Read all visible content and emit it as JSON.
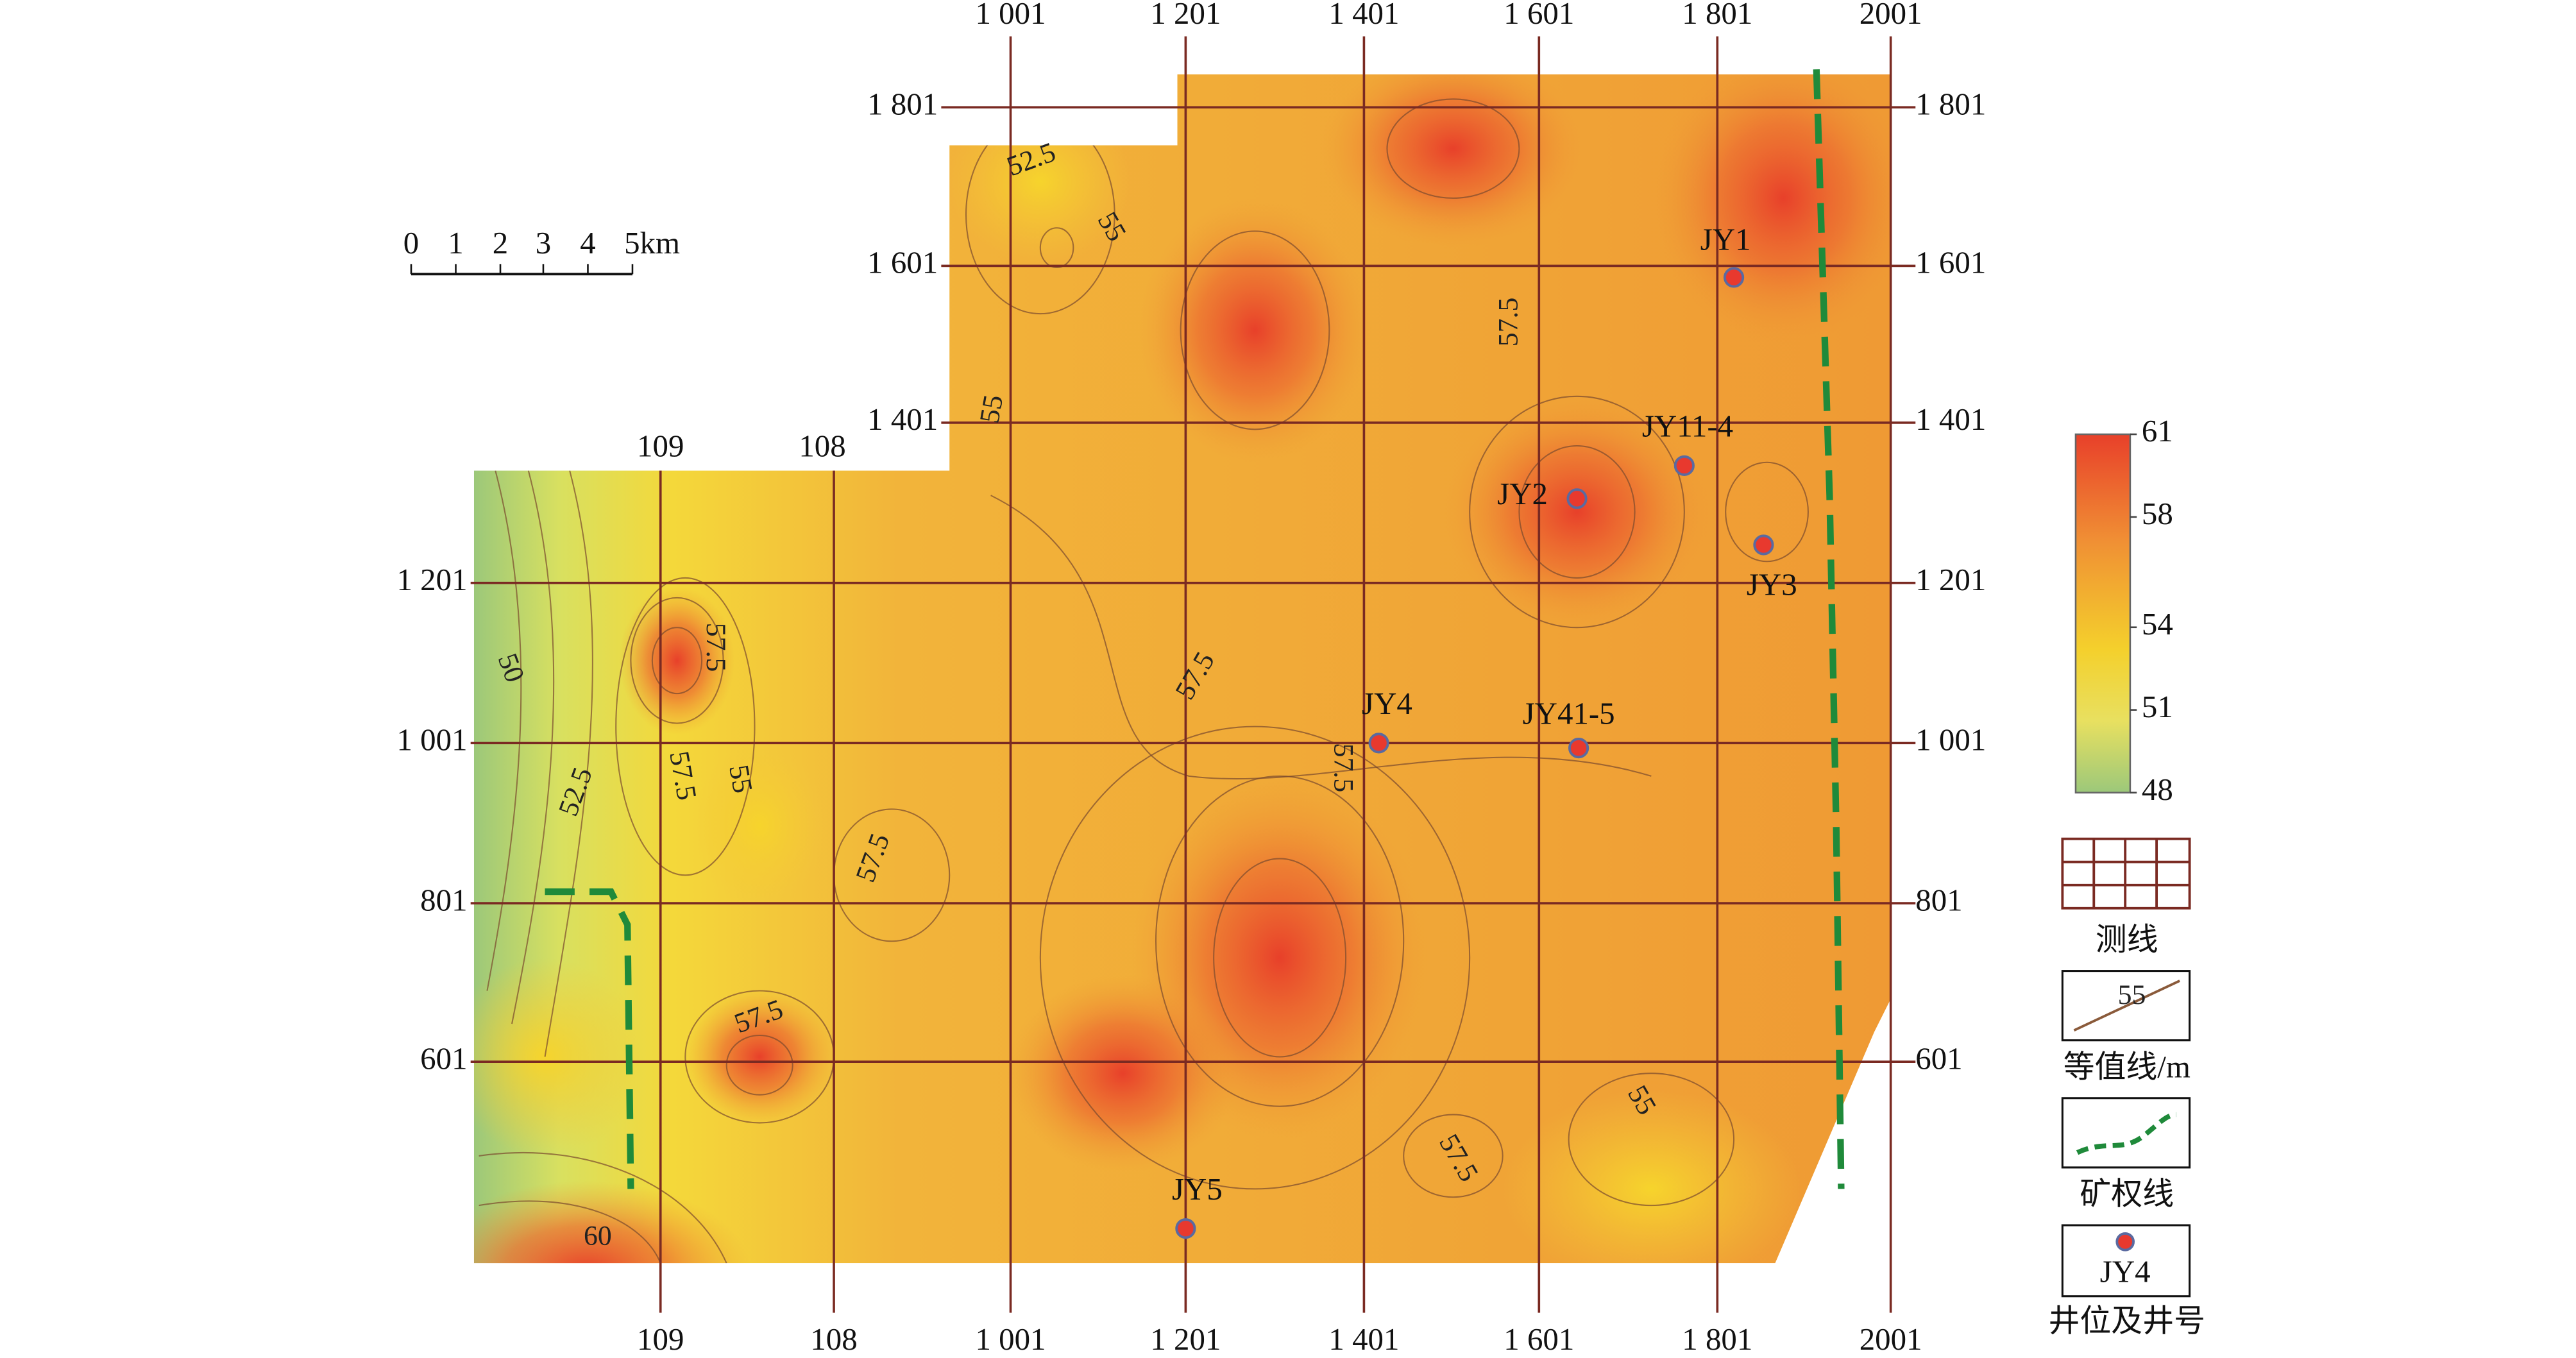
{
  "grid": {
    "top_labels": [
      "1 001",
      "1 201",
      "1 401",
      "1 601",
      "1 801",
      "2001"
    ],
    "bottom_labels": [
      "109",
      "108",
      "1 001",
      "1 201",
      "1 401",
      "1 601",
      "1 801",
      "2001"
    ],
    "left_labels": [
      "1 801",
      "1 601",
      "1 401",
      "1 201",
      "1 001",
      "801",
      "601"
    ],
    "right_labels": [
      "1 801",
      "1 601",
      "1 401",
      "1 201",
      "1 001",
      "801",
      "601"
    ],
    "inner_labels": [
      "109",
      "108"
    ]
  },
  "scale_bar": {
    "ticks": [
      "0",
      "1",
      "2",
      "3",
      "4",
      "5km"
    ]
  },
  "wells": [
    "JY1",
    "JY11-4",
    "JY2",
    "JY3",
    "JY4",
    "JY41-5",
    "JY5"
  ],
  "contour_labels": [
    "52.5",
    "55",
    "55",
    "57.5",
    "57.5",
    "50",
    "52.5",
    "57.5",
    "55",
    "57.5",
    "57.5",
    "57.5",
    "57.5",
    "55",
    "57.5",
    "60"
  ],
  "colorbar": {
    "ticks": [
      61,
      58,
      54,
      51,
      48
    ]
  },
  "legend": {
    "survey_lines": "测线",
    "contours": "等值线/m",
    "contour_sample": "55",
    "mining_boundary": "矿权线",
    "wells": "井位及井号",
    "well_sample": "JY4"
  }
}
